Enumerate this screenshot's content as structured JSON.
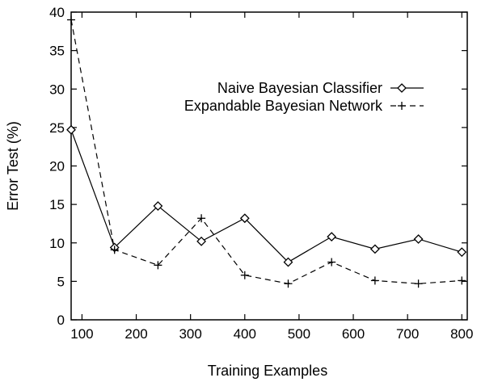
{
  "chart_data": {
    "type": "line",
    "title": "",
    "xlabel": "Training Examples",
    "ylabel": "Error Test (%)",
    "xlim": [
      80,
      810
    ],
    "ylim": [
      0,
      40
    ],
    "x_ticks": [
      100,
      200,
      300,
      400,
      500,
      600,
      700,
      800
    ],
    "y_ticks": [
      0,
      5,
      10,
      15,
      20,
      25,
      30,
      35,
      40
    ],
    "grid": false,
    "legend_position": "upper-right",
    "series": [
      {
        "name": "Naive Bayesian Classifier",
        "marker": "diamond",
        "line_style": "solid",
        "color": "#000000",
        "x": [
          80,
          160,
          240,
          320,
          400,
          480,
          560,
          640,
          720,
          800
        ],
        "y": [
          24.7,
          9.4,
          14.8,
          10.2,
          13.2,
          7.5,
          10.8,
          9.2,
          10.5,
          8.8
        ]
      },
      {
        "name": "Expandable Bayesian Network",
        "marker": "plus",
        "line_style": "dashed",
        "color": "#000000",
        "x": [
          80,
          160,
          240,
          320,
          400,
          480,
          560,
          640,
          720,
          800
        ],
        "y": [
          39.0,
          9.1,
          7.1,
          13.2,
          5.8,
          4.7,
          7.5,
          5.1,
          4.7,
          5.1
        ]
      }
    ]
  }
}
